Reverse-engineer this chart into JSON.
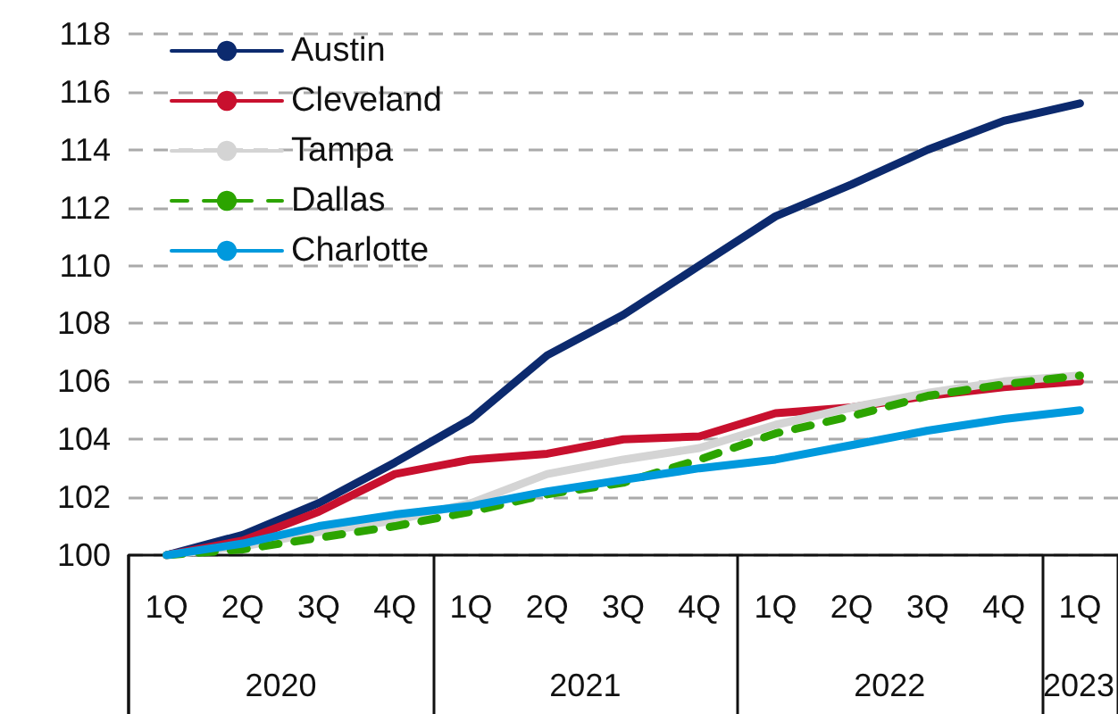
{
  "chart_data": {
    "type": "line",
    "categories": [
      "1Q",
      "2Q",
      "3Q",
      "4Q",
      "1Q",
      "2Q",
      "3Q",
      "4Q",
      "1Q",
      "2Q",
      "3Q",
      "4Q",
      "1Q"
    ],
    "annotations": [
      "2020",
      "2021",
      "2022",
      "2023"
    ],
    "series": [
      {
        "name": "Austin",
        "color": "#0c2a6e",
        "values": [
          100,
          100.7,
          101.8,
          103.2,
          104.7,
          106.9,
          108.3,
          110,
          111.7,
          112.8,
          114,
          115,
          115.6
        ]
      },
      {
        "name": "Cleveland",
        "color": "#c8102e",
        "values": [
          100,
          100.5,
          101.5,
          102.8,
          103.3,
          103.5,
          104,
          104.1,
          104.9,
          105.1,
          105.5,
          105.8,
          106
        ]
      },
      {
        "name": "Tampa",
        "color": "#d4d4d4",
        "values": [
          100,
          100.3,
          100.8,
          101.2,
          101.8,
          102.8,
          103.3,
          103.7,
          104.5,
          105.1,
          105.6,
          106,
          106.2
        ]
      },
      {
        "name": "Dallas",
        "color": "#2ca400",
        "line_style": "dashed",
        "values": [
          100,
          100.2,
          100.6,
          101,
          101.5,
          102.1,
          102.5,
          103.3,
          104.2,
          104.8,
          105.5,
          105.9,
          106.2
        ]
      },
      {
        "name": "Charlotte",
        "color": "#0099dd",
        "values": [
          100,
          100.4,
          101,
          101.4,
          101.7,
          102.2,
          102.6,
          103,
          103.3,
          103.8,
          104.3,
          104.7,
          105
        ]
      }
    ],
    "ylim": [
      100,
      118
    ],
    "yticks": [
      100,
      102,
      104,
      106,
      108,
      110,
      112,
      114,
      116,
      118
    ],
    "grid": "y",
    "legend": "top left",
    "marker": "none",
    "line_style": "solid"
  }
}
